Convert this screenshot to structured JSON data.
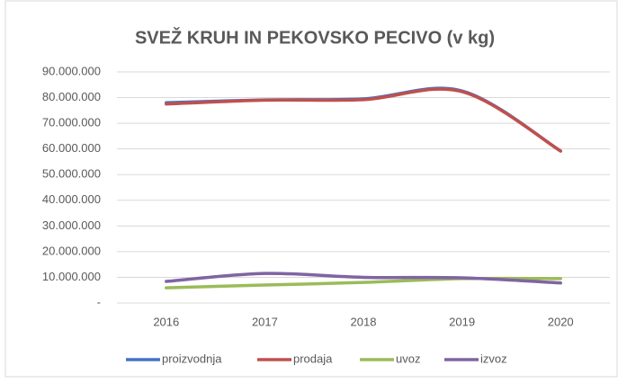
{
  "chart_data": {
    "type": "line",
    "title": "SVEŽ KRUH IN PEKOVSKO PECIVO (v kg)",
    "categories": [
      "2016",
      "2017",
      "2018",
      "2019",
      "2020"
    ],
    "series": [
      {
        "name": "proizvodnja",
        "color": "#4472c4",
        "values": [
          78000000,
          79100000,
          79500000,
          82600000,
          59200000
        ]
      },
      {
        "name": "prodaja",
        "color": "#c0504d",
        "values": [
          77500000,
          79000000,
          79200000,
          82300000,
          59200000
        ]
      },
      {
        "name": "uvoz",
        "color": "#9bbb59",
        "values": [
          5900000,
          7000000,
          8000000,
          9500000,
          9500000
        ]
      },
      {
        "name": "izvoz",
        "color": "#8064a2",
        "values": [
          8400000,
          11500000,
          10000000,
          9800000,
          7800000
        ]
      }
    ],
    "ylim": [
      0,
      90000000
    ],
    "yticks": [
      {
        "value": 0,
        "label": "-"
      },
      {
        "value": 10000000,
        "label": "10.000.000"
      },
      {
        "value": 20000000,
        "label": "20.000.000"
      },
      {
        "value": 30000000,
        "label": "30.000.000"
      },
      {
        "value": 40000000,
        "label": "40.000.000"
      },
      {
        "value": 50000000,
        "label": "50.000.000"
      },
      {
        "value": 60000000,
        "label": "60.000.000"
      },
      {
        "value": 70000000,
        "label": "70.000.000"
      },
      {
        "value": 80000000,
        "label": "80.000.000"
      },
      {
        "value": 90000000,
        "label": "90.000.000"
      }
    ],
    "grid": true,
    "legend": "bottom"
  }
}
